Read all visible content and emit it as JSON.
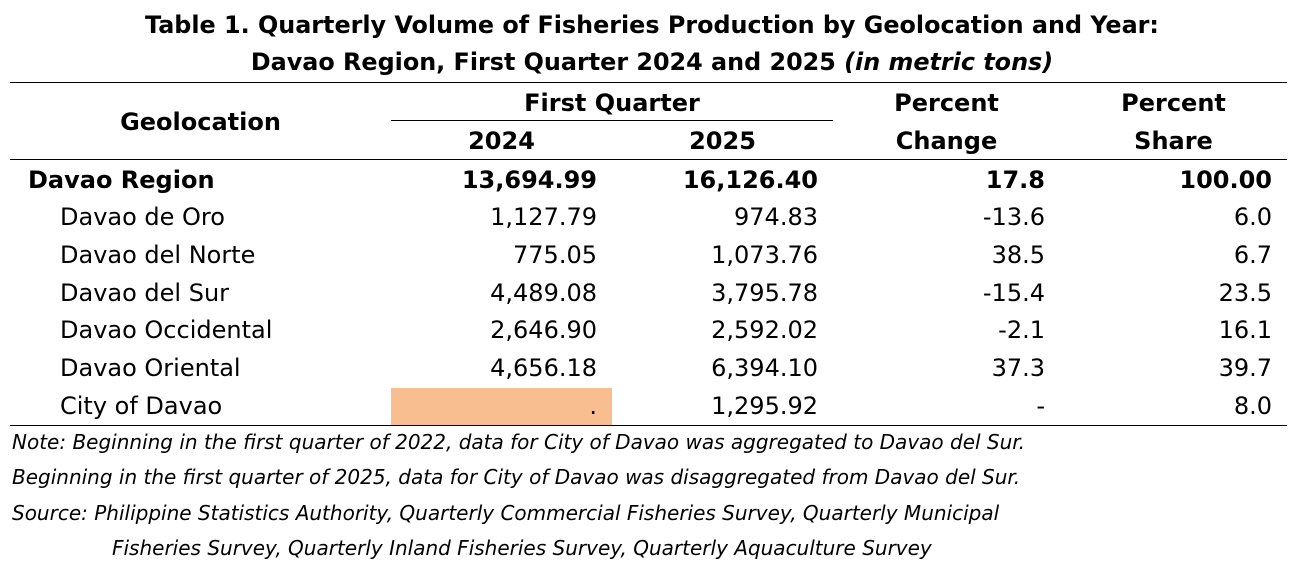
{
  "title": {
    "line1": "Table 1. Quarterly Volume of Fisheries Production by Geolocation and Year:",
    "line2": "Davao Region, First Quarter 2024 and 2025",
    "unit": "(in metric tons)"
  },
  "table": {
    "headers": {
      "geolocation": "Geolocation",
      "period": "First Quarter",
      "year1": "2024",
      "year2": "2025",
      "pct_change_l1": "Percent",
      "pct_change_l2": "Change",
      "pct_share_l1": "Percent",
      "pct_share_l2": "Share"
    },
    "rows": [
      {
        "geo": "Davao Region",
        "v2024": "13,694.99",
        "v2025": "16,126.40",
        "change": "17.8",
        "share": "100.00"
      },
      {
        "geo": "Davao de Oro",
        "v2024": "1,127.79",
        "v2025": "974.83",
        "change": "-13.6",
        "share": "6.0"
      },
      {
        "geo": "Davao del Norte",
        "v2024": "775.05",
        "v2025": "1,073.76",
        "change": "38.5",
        "share": "6.7"
      },
      {
        "geo": "Davao del Sur",
        "v2024": "4,489.08",
        "v2025": "3,795.78",
        "change": "-15.4",
        "share": "23.5"
      },
      {
        "geo": "Davao Occidental",
        "v2024": "2,646.90",
        "v2025": "2,592.02",
        "change": "-2.1",
        "share": "16.1"
      },
      {
        "geo": "Davao Oriental",
        "v2024": "4,656.18",
        "v2025": "6,394.10",
        "change": "37.3",
        "share": "39.7"
      },
      {
        "geo": "City of Davao",
        "v2024": ".",
        "v2025": "1,295.92",
        "change": "-",
        "share": "8.0"
      }
    ]
  },
  "colors": {
    "highlight_cell": "#f8be8f"
  },
  "notes": {
    "note_line1": "Note: Beginning in the first quarter of 2022, data for City of Davao was aggregated to Davao del Sur.",
    "note_line2": "Beginning in the first quarter of 2025, data for City of Davao was disaggregated from Davao del Sur.",
    "source_line1": "Source: Philippine Statistics Authority, Quarterly Commercial Fisheries Survey, Quarterly Municipal",
    "source_line2": "Fisheries Survey, Quarterly Inland Fisheries Survey, Quarterly Aquaculture Survey"
  }
}
